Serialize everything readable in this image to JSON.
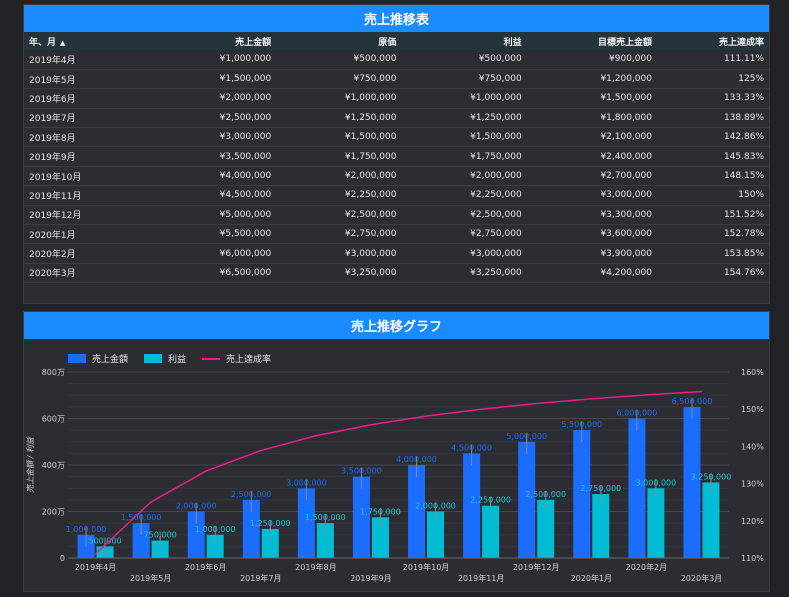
{
  "table": {
    "title": "売上推移表",
    "columns": [
      "年、月",
      "売上金額",
      "原価",
      "利益",
      "目標売上金額",
      "売上達成率"
    ],
    "rows": [
      [
        "2019年4月",
        "¥1,000,000",
        "¥500,000",
        "¥500,000",
        "¥900,000",
        "111.11%"
      ],
      [
        "2019年5月",
        "¥1,500,000",
        "¥750,000",
        "¥750,000",
        "¥1,200,000",
        "125%"
      ],
      [
        "2019年6月",
        "¥2,000,000",
        "¥1,000,000",
        "¥1,000,000",
        "¥1,500,000",
        "133.33%"
      ],
      [
        "2019年7月",
        "¥2,500,000",
        "¥1,250,000",
        "¥1,250,000",
        "¥1,800,000",
        "138.89%"
      ],
      [
        "2019年8月",
        "¥3,000,000",
        "¥1,500,000",
        "¥1,500,000",
        "¥2,100,000",
        "142.86%"
      ],
      [
        "2019年9月",
        "¥3,500,000",
        "¥1,750,000",
        "¥1,750,000",
        "¥2,400,000",
        "145.83%"
      ],
      [
        "2019年10月",
        "¥4,000,000",
        "¥2,000,000",
        "¥2,000,000",
        "¥2,700,000",
        "148.15%"
      ],
      [
        "2019年11月",
        "¥4,500,000",
        "¥2,250,000",
        "¥2,250,000",
        "¥3,000,000",
        "150%"
      ],
      [
        "2019年12月",
        "¥5,000,000",
        "¥2,500,000",
        "¥2,500,000",
        "¥3,300,000",
        "151.52%"
      ],
      [
        "2020年1月",
        "¥5,500,000",
        "¥2,750,000",
        "¥2,750,000",
        "¥3,600,000",
        "152.78%"
      ],
      [
        "2020年2月",
        "¥6,000,000",
        "¥3,000,000",
        "¥3,000,000",
        "¥3,900,000",
        "153.85%"
      ],
      [
        "2020年3月",
        "¥6,500,000",
        "¥3,250,000",
        "¥3,250,000",
        "¥4,200,000",
        "154.76%"
      ]
    ]
  },
  "chart": {
    "title": "売上推移グラフ"
  },
  "colors": {
    "header_blue": "#1a8cff",
    "sales_bar": "#1a6dff",
    "profit_bar": "#00bcd4",
    "rate_line": "#e91e8c"
  },
  "chart_data": {
    "type": "bar",
    "title": "売上推移グラフ",
    "categories": [
      "2019年4月",
      "2019年5月",
      "2019年6月",
      "2019年7月",
      "2019年8月",
      "2019年9月",
      "2019年10月",
      "2019年11月",
      "2019年12月",
      "2020年1月",
      "2020年2月",
      "2020年3月"
    ],
    "series": [
      {
        "name": "売上金額",
        "type": "bar",
        "axis": "left",
        "values": [
          1000000,
          1500000,
          2000000,
          2500000,
          3000000,
          3500000,
          4000000,
          4500000,
          5000000,
          5500000,
          6000000,
          6500000
        ]
      },
      {
        "name": "利益",
        "type": "bar",
        "axis": "left",
        "values": [
          500000,
          750000,
          1000000,
          1250000,
          1500000,
          1750000,
          2000000,
          2250000,
          2500000,
          2750000,
          3000000,
          3250000
        ]
      },
      {
        "name": "売上達成率",
        "type": "line",
        "axis": "right",
        "values": [
          111.11,
          125,
          133.33,
          138.89,
          142.86,
          145.83,
          148.15,
          150,
          151.52,
          152.78,
          153.85,
          154.76
        ]
      }
    ],
    "data_labels": {
      "売上金額": [
        "1,000,000",
        "1,500,000",
        "2,000,000",
        "2,500,000",
        "3,000,000",
        "3,500,000",
        "4,000,000",
        "4,500,000",
        "5,000,000",
        "5,500,000",
        "6,000,000",
        "6,500,000"
      ],
      "利益": [
        "500,000",
        "750,000",
        "1,000,000",
        "1,250,000",
        "1,500,000",
        "1,750,000",
        "2,000,000",
        "2,250,000",
        "2,500,000",
        "2,750,000",
        "3,000,000",
        "3,250,000"
      ]
    },
    "ylabel": "売上金額 / 利益",
    "ylim": [
      0,
      8000000
    ],
    "y_ticks": [
      0,
      2000000,
      4000000,
      6000000,
      8000000
    ],
    "y_tick_labels": [
      "0",
      "200万",
      "400万",
      "600万",
      "800万"
    ],
    "y2lim": [
      110,
      160
    ],
    "y2_ticks": [
      110,
      120,
      130,
      140,
      150,
      160
    ],
    "y2_tick_labels": [
      "110%",
      "120%",
      "130%",
      "140%",
      "150%",
      "160%"
    ],
    "legend": "top-left",
    "grid": true
  }
}
